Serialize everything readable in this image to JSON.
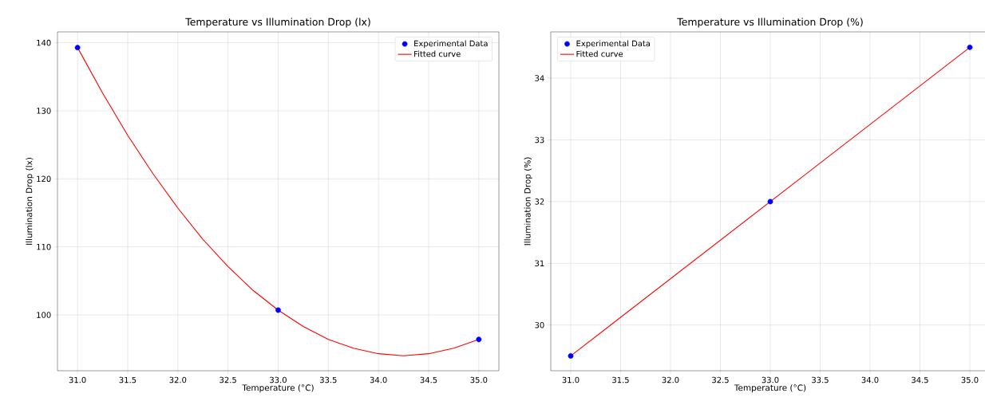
{
  "chart_data": [
    {
      "type": "scatter",
      "title": "Temperature vs Illumination Drop (lx)",
      "xlabel": "Temperature (°C)",
      "ylabel": "Illumination Drop (lx)",
      "series": [
        {
          "name": "Experimental Data",
          "color": "#0000ff",
          "marker": "circle",
          "x": [
            31,
            33,
            35
          ],
          "values": [
            139.3,
            100.7,
            96.4
          ]
        },
        {
          "name": "Fitted curve",
          "type": "line",
          "color": "#ff0000",
          "x": [
            31,
            31.25,
            31.5,
            31.75,
            32,
            32.25,
            32.5,
            32.75,
            33,
            33.25,
            33.5,
            33.75,
            34,
            34.25,
            34.5,
            34.75,
            35
          ],
          "values": [
            139.3,
            132.6,
            126.4,
            120.8,
            115.7,
            111.1,
            107.1,
            103.6,
            100.7,
            98.3,
            96.4,
            95.1,
            94.3,
            94.0,
            94.3,
            95.1,
            96.4
          ]
        }
      ],
      "xlim": [
        30.8,
        35.2
      ],
      "ylim": [
        91.8,
        141.6
      ],
      "xticks": [
        {
          "value": 31,
          "label": "31.0"
        },
        {
          "value": 31.5,
          "label": "31.5"
        },
        {
          "value": 32,
          "label": "32.0"
        },
        {
          "value": 32.5,
          "label": "32.5"
        },
        {
          "value": 33,
          "label": "33.0"
        },
        {
          "value": 33.5,
          "label": "33.5"
        },
        {
          "value": 34,
          "label": "34.0"
        },
        {
          "value": 34.5,
          "label": "34.5"
        },
        {
          "value": 35,
          "label": "35.0"
        }
      ],
      "yticks": [
        100,
        110,
        120,
        130,
        140
      ],
      "grid": true,
      "legend": "top right"
    },
    {
      "type": "scatter",
      "title": "Temperature vs Illumination Drop (%)",
      "xlabel": "Temperature (°C)",
      "ylabel": "Illumination Drop (%)",
      "series": [
        {
          "name": "Experimental Data",
          "color": "#0000ff",
          "marker": "circle",
          "x": [
            31,
            33,
            35
          ],
          "values": [
            29.5,
            32.0,
            34.5
          ]
        },
        {
          "name": "Fitted curve",
          "type": "line",
          "color": "#ff0000",
          "x": [
            31,
            35
          ],
          "values": [
            29.5,
            34.5
          ]
        }
      ],
      "xlim": [
        30.8,
        35.2
      ],
      "ylim": [
        29.26,
        34.75
      ],
      "xticks": [
        {
          "value": 31,
          "label": "31.0"
        },
        {
          "value": 31.5,
          "label": "31.5"
        },
        {
          "value": 32,
          "label": "32.0"
        },
        {
          "value": 32.5,
          "label": "32.5"
        },
        {
          "value": 33,
          "label": "33.0"
        },
        {
          "value": 33.5,
          "label": "33.5"
        },
        {
          "value": 34,
          "label": "34.0"
        },
        {
          "value": 34.5,
          "label": "34.5"
        },
        {
          "value": 35,
          "label": "35.0"
        }
      ],
      "yticks": [
        30,
        31,
        32,
        33,
        34
      ],
      "grid": true,
      "legend": "top left"
    }
  ]
}
